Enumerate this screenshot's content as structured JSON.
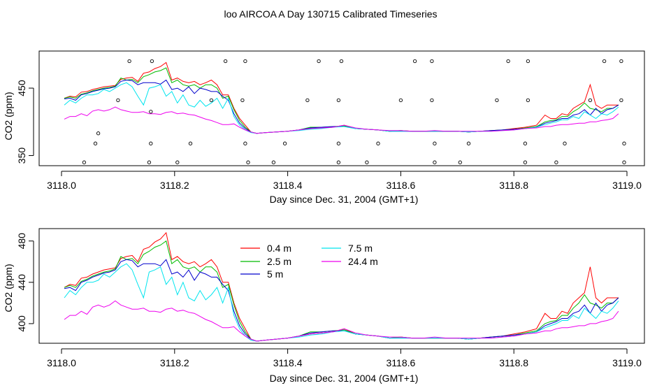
{
  "title": "loo AIRCOA A  Day 130715  Calibrated Timeseries",
  "colors": {
    "0.4 m": "#ff0000",
    "2.5 m": "#00bb00",
    "5 m": "#0000cc",
    "7.5 m": "#00e5ee",
    "24.4 m": "#ee00ee"
  },
  "chart_data": [
    {
      "type": "scatter+line",
      "xlabel": "Day since Dec. 31, 2004 (GMT+1)",
      "ylabel": "CO2 (ppm)",
      "xlim": [
        3118.0,
        3119.0
      ],
      "ylim": [
        335,
        505
      ],
      "xticks": [
        "3118.0",
        "3118.2",
        "3118.4",
        "3118.6",
        "3118.8",
        "3119.0"
      ],
      "xtick_values": [
        3118.0,
        3118.2,
        3118.4,
        3118.6,
        3118.8,
        3119.0
      ],
      "yticks": [
        "350",
        "450"
      ],
      "ytick_values": [
        350,
        450
      ],
      "grid": false,
      "legend": "none",
      "marker_points": [
        [
          3118.04,
          340
        ],
        [
          3118.06,
          368
        ],
        [
          3118.065,
          383
        ],
        [
          3118.1,
          432
        ],
        [
          3118.12,
          490
        ],
        [
          3118.155,
          340
        ],
        [
          3118.158,
          368
        ],
        [
          3118.158,
          415
        ],
        [
          3118.16,
          490
        ],
        [
          3118.205,
          340
        ],
        [
          3118.228,
          368
        ],
        [
          3118.265,
          432
        ],
        [
          3118.29,
          490
        ],
        [
          3118.325,
          490
        ],
        [
          3118.32,
          432
        ],
        [
          3118.325,
          368
        ],
        [
          3118.33,
          340
        ],
        [
          3118.375,
          340
        ],
        [
          3118.395,
          368
        ],
        [
          3118.435,
          432
        ],
        [
          3118.455,
          490
        ],
        [
          3118.49,
          432
        ],
        [
          3118.49,
          368
        ],
        [
          3118.49,
          340
        ],
        [
          3118.495,
          490
        ],
        [
          3118.54,
          340
        ],
        [
          3118.56,
          368
        ],
        [
          3118.6,
          432
        ],
        [
          3118.625,
          490
        ],
        [
          3118.655,
          490
        ],
        [
          3118.655,
          432
        ],
        [
          3118.66,
          368
        ],
        [
          3118.66,
          340
        ],
        [
          3118.705,
          340
        ],
        [
          3118.72,
          368
        ],
        [
          3118.77,
          432
        ],
        [
          3118.79,
          490
        ],
        [
          3118.825,
          490
        ],
        [
          3118.825,
          432
        ],
        [
          3118.82,
          368
        ],
        [
          3118.82,
          340
        ],
        [
          3118.875,
          340
        ],
        [
          3118.89,
          368
        ],
        [
          3118.935,
          432
        ],
        [
          3118.96,
          490
        ],
        [
          3118.99,
          490
        ],
        [
          3118.99,
          432
        ],
        [
          3118.995,
          368
        ],
        [
          3118.995,
          340
        ]
      ],
      "series": [
        {
          "name": "0.4 m",
          "x": [
            3118.005,
            3118.015,
            3118.025,
            3118.035,
            3118.045,
            3118.055,
            3118.065,
            3118.075,
            3118.085,
            3118.095,
            3118.105,
            3118.115,
            3118.125,
            3118.135,
            3118.145,
            3118.155,
            3118.165,
            3118.175,
            3118.185,
            3118.195,
            3118.205,
            3118.215,
            3118.225,
            3118.235,
            3118.245,
            3118.255,
            3118.265,
            3118.275,
            3118.285,
            3118.295,
            3118.305,
            3118.315,
            3118.325,
            3118.335,
            3118.345,
            3118.36,
            3118.38,
            3118.4,
            3118.42,
            3118.44,
            3118.46,
            3118.48,
            3118.5,
            3118.52,
            3118.54,
            3118.56,
            3118.58,
            3118.6,
            3118.62,
            3118.64,
            3118.66,
            3118.68,
            3118.7,
            3118.72,
            3118.74,
            3118.76,
            3118.78,
            3118.8,
            3118.82,
            3118.84,
            3118.855,
            3118.865,
            3118.875,
            3118.885,
            3118.895,
            3118.905,
            3118.915,
            3118.925,
            3118.935,
            3118.945,
            3118.955,
            3118.965,
            3118.975,
            3118.985
          ],
          "y": [
            435,
            438,
            437,
            444,
            445,
            448,
            450,
            452,
            453,
            454,
            463,
            465,
            466,
            460,
            472,
            474,
            479,
            482,
            488,
            462,
            465,
            460,
            458,
            460,
            455,
            458,
            462,
            455,
            440,
            440,
            420,
            405,
            395,
            385,
            383,
            384,
            385,
            386,
            388,
            390,
            391,
            392,
            395,
            390,
            389,
            388,
            386,
            387,
            386,
            386,
            386,
            386,
            386,
            385,
            386,
            387,
            388,
            390,
            392,
            395,
            410,
            405,
            405,
            412,
            410,
            420,
            425,
            430,
            455,
            425,
            420,
            425,
            425,
            425
          ]
        },
        {
          "name": "2.5 m",
          "x": [
            3118.005,
            3118.015,
            3118.025,
            3118.035,
            3118.045,
            3118.055,
            3118.065,
            3118.075,
            3118.085,
            3118.095,
            3118.105,
            3118.115,
            3118.125,
            3118.135,
            3118.145,
            3118.155,
            3118.165,
            3118.175,
            3118.185,
            3118.195,
            3118.205,
            3118.215,
            3118.225,
            3118.235,
            3118.245,
            3118.255,
            3118.265,
            3118.275,
            3118.285,
            3118.295,
            3118.305,
            3118.315,
            3118.325,
            3118.335,
            3118.345,
            3118.36,
            3118.38,
            3118.4,
            3118.42,
            3118.44,
            3118.46,
            3118.48,
            3118.5,
            3118.52,
            3118.54,
            3118.56,
            3118.58,
            3118.6,
            3118.62,
            3118.64,
            3118.66,
            3118.68,
            3118.7,
            3118.72,
            3118.74,
            3118.76,
            3118.78,
            3118.8,
            3118.82,
            3118.84,
            3118.855,
            3118.865,
            3118.875,
            3118.885,
            3118.895,
            3118.905,
            3118.915,
            3118.925,
            3118.935,
            3118.945,
            3118.955,
            3118.965,
            3118.975,
            3118.985
          ],
          "y": [
            435,
            437,
            435,
            441,
            443,
            446,
            448,
            450,
            451,
            453,
            465,
            462,
            463,
            458,
            467,
            470,
            474,
            476,
            480,
            458,
            462,
            455,
            453,
            455,
            450,
            455,
            455,
            450,
            435,
            438,
            418,
            402,
            392,
            385,
            383,
            384,
            385,
            386,
            388,
            392,
            392,
            393,
            394,
            390,
            389,
            388,
            386,
            387,
            386,
            386,
            386,
            386,
            386,
            385,
            386,
            387,
            388,
            389,
            391,
            393,
            400,
            402,
            403,
            408,
            408,
            415,
            420,
            428,
            420,
            418,
            415,
            420,
            420,
            425
          ]
        },
        {
          "name": "5 m",
          "x": [
            3118.005,
            3118.015,
            3118.025,
            3118.035,
            3118.045,
            3118.055,
            3118.065,
            3118.075,
            3118.085,
            3118.095,
            3118.105,
            3118.115,
            3118.125,
            3118.135,
            3118.145,
            3118.155,
            3118.165,
            3118.175,
            3118.185,
            3118.195,
            3118.205,
            3118.215,
            3118.225,
            3118.235,
            3118.245,
            3118.255,
            3118.265,
            3118.275,
            3118.285,
            3118.295,
            3118.305,
            3118.315,
            3118.325,
            3118.335,
            3118.345,
            3118.36,
            3118.38,
            3118.4,
            3118.42,
            3118.44,
            3118.46,
            3118.48,
            3118.5,
            3118.52,
            3118.54,
            3118.56,
            3118.58,
            3118.6,
            3118.62,
            3118.64,
            3118.66,
            3118.68,
            3118.7,
            3118.72,
            3118.74,
            3118.76,
            3118.78,
            3118.8,
            3118.82,
            3118.84,
            3118.855,
            3118.865,
            3118.875,
            3118.885,
            3118.895,
            3118.905,
            3118.915,
            3118.925,
            3118.935,
            3118.945,
            3118.955,
            3118.965,
            3118.975,
            3118.985
          ],
          "y": [
            434,
            435,
            432,
            440,
            442,
            445,
            447,
            449,
            450,
            452,
            460,
            462,
            461,
            455,
            458,
            458,
            458,
            456,
            462,
            448,
            450,
            445,
            452,
            442,
            450,
            448,
            445,
            445,
            438,
            432,
            412,
            398,
            390,
            385,
            383,
            384,
            385,
            386,
            388,
            391,
            392,
            393,
            393,
            390,
            389,
            388,
            386,
            386,
            386,
            386,
            386,
            386,
            386,
            385,
            386,
            387,
            388,
            389,
            390,
            392,
            398,
            400,
            402,
            405,
            405,
            410,
            412,
            418,
            410,
            420,
            412,
            418,
            420,
            425
          ]
        },
        {
          "name": "7.5 m",
          "x": [
            3118.005,
            3118.015,
            3118.025,
            3118.035,
            3118.045,
            3118.055,
            3118.065,
            3118.075,
            3118.085,
            3118.095,
            3118.105,
            3118.115,
            3118.125,
            3118.135,
            3118.145,
            3118.155,
            3118.165,
            3118.175,
            3118.185,
            3118.195,
            3118.205,
            3118.215,
            3118.225,
            3118.235,
            3118.245,
            3118.255,
            3118.265,
            3118.275,
            3118.285,
            3118.295,
            3118.305,
            3118.315,
            3118.325,
            3118.335,
            3118.345,
            3118.36,
            3118.38,
            3118.4,
            3118.42,
            3118.44,
            3118.46,
            3118.48,
            3118.5,
            3118.52,
            3118.54,
            3118.56,
            3118.58,
            3118.6,
            3118.62,
            3118.64,
            3118.66,
            3118.68,
            3118.7,
            3118.72,
            3118.74,
            3118.76,
            3118.78,
            3118.8,
            3118.82,
            3118.84,
            3118.855,
            3118.865,
            3118.875,
            3118.885,
            3118.895,
            3118.905,
            3118.915,
            3118.925,
            3118.935,
            3118.945,
            3118.955,
            3118.965,
            3118.975,
            3118.985
          ],
          "y": [
            425,
            432,
            428,
            435,
            440,
            440,
            442,
            448,
            445,
            450,
            455,
            458,
            452,
            438,
            425,
            450,
            452,
            455,
            438,
            445,
            428,
            440,
            425,
            422,
            432,
            423,
            428,
            435,
            420,
            435,
            408,
            395,
            388,
            384,
            383,
            384,
            385,
            386,
            387,
            389,
            390,
            392,
            393,
            390,
            389,
            388,
            386,
            386,
            386,
            386,
            386,
            386,
            386,
            385,
            386,
            386,
            387,
            388,
            390,
            392,
            396,
            398,
            400,
            403,
            403,
            408,
            405,
            415,
            410,
            405,
            412,
            410,
            415,
            422
          ]
        },
        {
          "name": "24.4 m",
          "x": [
            3118.005,
            3118.015,
            3118.025,
            3118.035,
            3118.045,
            3118.055,
            3118.065,
            3118.075,
            3118.085,
            3118.095,
            3118.105,
            3118.115,
            3118.125,
            3118.135,
            3118.145,
            3118.155,
            3118.165,
            3118.175,
            3118.185,
            3118.195,
            3118.205,
            3118.215,
            3118.225,
            3118.235,
            3118.245,
            3118.255,
            3118.265,
            3118.275,
            3118.285,
            3118.295,
            3118.305,
            3118.315,
            3118.325,
            3118.335,
            3118.345,
            3118.36,
            3118.38,
            3118.4,
            3118.42,
            3118.44,
            3118.46,
            3118.48,
            3118.5,
            3118.52,
            3118.54,
            3118.56,
            3118.58,
            3118.6,
            3118.62,
            3118.64,
            3118.66,
            3118.68,
            3118.7,
            3118.72,
            3118.74,
            3118.76,
            3118.78,
            3118.8,
            3118.82,
            3118.84,
            3118.855,
            3118.865,
            3118.875,
            3118.885,
            3118.895,
            3118.905,
            3118.915,
            3118.925,
            3118.935,
            3118.945,
            3118.955,
            3118.965,
            3118.975,
            3118.985
          ],
          "y": [
            404,
            408,
            408,
            412,
            409,
            416,
            418,
            416,
            418,
            422,
            418,
            416,
            414,
            414,
            415,
            412,
            412,
            411,
            414,
            415,
            412,
            413,
            411,
            410,
            407,
            404,
            402,
            399,
            396,
            396,
            397,
            392,
            388,
            385,
            383,
            384,
            385,
            386,
            388,
            390,
            391,
            392,
            395,
            391,
            389,
            388,
            387,
            387,
            386,
            386,
            387,
            386,
            386,
            386,
            386,
            386,
            387,
            388,
            390,
            391,
            393,
            393,
            395,
            396,
            396,
            397,
            398,
            398,
            400,
            400,
            402,
            403,
            405,
            412
          ]
        }
      ]
    },
    {
      "type": "line",
      "xlabel": "Day since Dec. 31, 2004 (GMT+1)",
      "ylabel": "CO2 (ppm)",
      "xlim": [
        3118.0,
        3119.0
      ],
      "ylim": [
        381,
        492
      ],
      "xticks": [
        "3118.0",
        "3118.2",
        "3118.4",
        "3118.6",
        "3118.8",
        "3119.0"
      ],
      "xtick_values": [
        3118.0,
        3118.2,
        3118.4,
        3118.6,
        3118.8,
        3119.0
      ],
      "yticks": [
        "400",
        "440",
        "480"
      ],
      "ytick_values": [
        400,
        440,
        480
      ],
      "grid": false,
      "legend": "top-left",
      "legend_entries": [
        {
          "name": "0.4 m"
        },
        {
          "name": "2.5 m"
        },
        {
          "name": "5 m"
        },
        {
          "name": "7.5 m"
        },
        {
          "name": "24.4 m"
        }
      ]
    }
  ]
}
